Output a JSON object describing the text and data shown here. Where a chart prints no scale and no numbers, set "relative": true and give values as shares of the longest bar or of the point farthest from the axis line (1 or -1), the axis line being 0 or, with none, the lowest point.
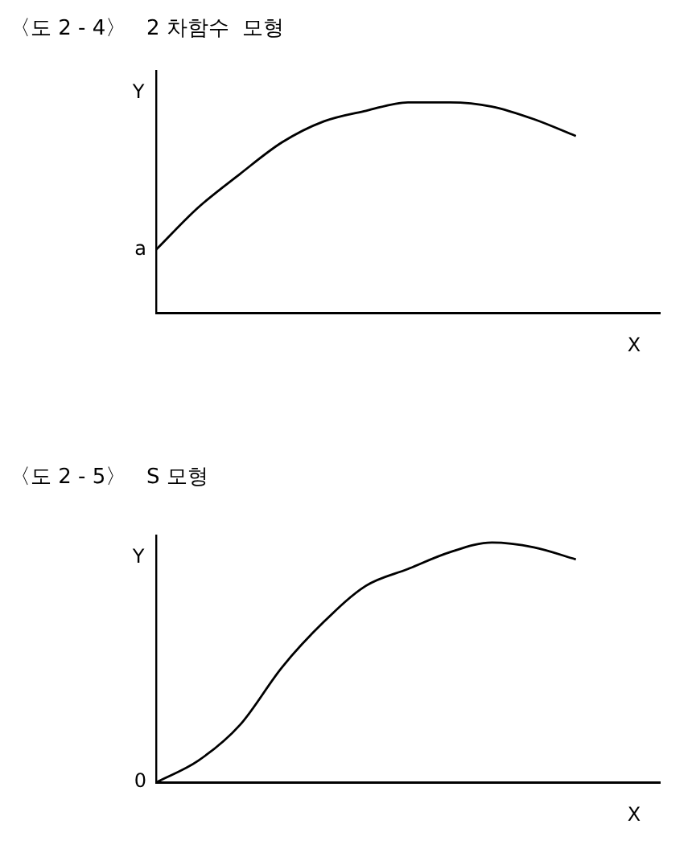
{
  "chart_data": [
    {
      "type": "line",
      "title": "〈도 2 - 4〉   2 차함수  모형",
      "xlabel": "X",
      "ylabel": "Y",
      "relative": true,
      "categories": [
        null,
        null,
        null,
        null,
        null,
        null,
        null,
        null,
        null,
        null,
        null,
        null,
        null
      ],
      "series": [
        {
          "color": "#000000",
          "values": [
            0.3,
            0.5,
            0.66,
            0.81,
            0.91,
            0.96,
            1.0,
            1.0,
            0.98,
            0.92,
            0.84,
            null,
            null
          ]
        }
      ],
      "annotations": [
        "a"
      ],
      "legend": false,
      "grid": false
    },
    {
      "type": "line",
      "title": "〈도 2 - 5〉   S 모형",
      "xlabel": "X",
      "ylabel": "Y",
      "relative": true,
      "categories": [
        null,
        null,
        null,
        null,
        null,
        null,
        null,
        null,
        null,
        null,
        null,
        null,
        null
      ],
      "series": [
        {
          "color": "#000000",
          "values": [
            0,
            0.09,
            0.24,
            0.48,
            0.67,
            0.82,
            0.89,
            0.96,
            1.0,
            0.98,
            0.93,
            null,
            null
          ]
        }
      ],
      "annotations": [
        "0"
      ],
      "legend": false,
      "grid": false
    }
  ]
}
